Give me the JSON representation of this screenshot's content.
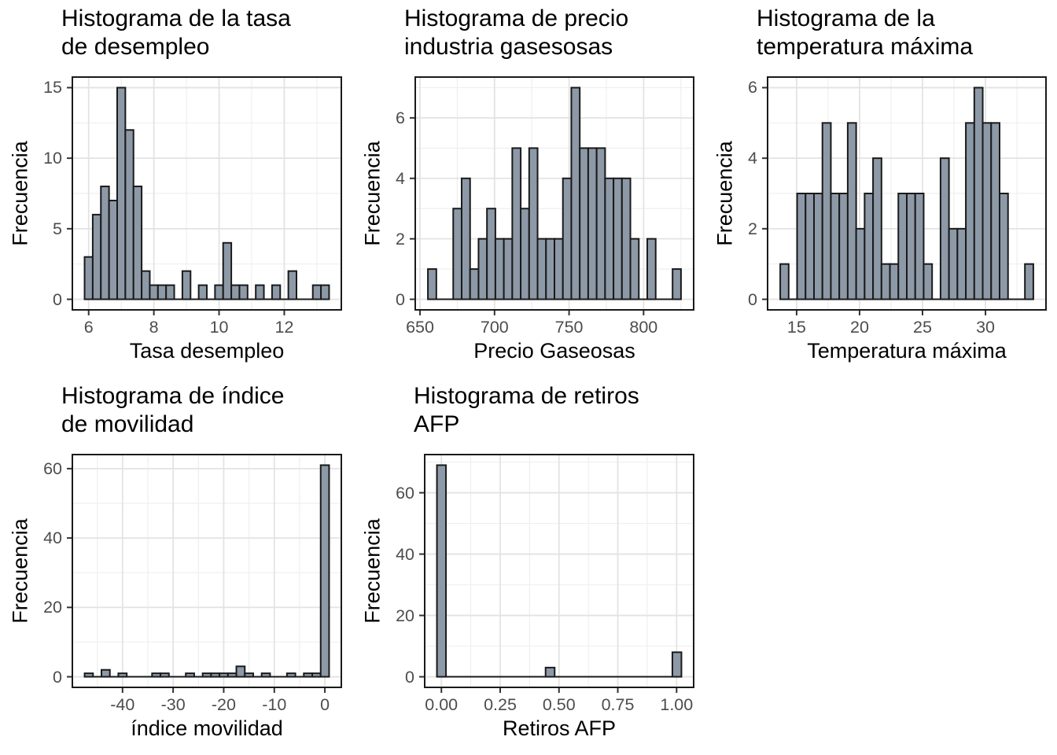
{
  "figure": {
    "background": "#FFFFFF",
    "rows": 2,
    "cols": 3,
    "description_note": "Grid of five frequency histograms"
  },
  "styles": {
    "bar_fill": "#8D99A7",
    "bar_stroke": "#1A1A1A",
    "panel_border": "#1A1A1A",
    "grid_major_color": "#E3E3E3",
    "grid_minor_color": "#EFEFEF",
    "axis_tick_color": "#333333",
    "tick_label_color": "#4D4D4D",
    "text_color": "#000000"
  },
  "chart_data": [
    {
      "id": "tasa-desempleo",
      "type": "bar",
      "variant": "histogram",
      "title": "Histograma de la tasa\n de desempleo",
      "xlabel": "Tasa desempleo",
      "ylabel": "Frecuencia",
      "grid": true,
      "legend": false,
      "bin_start": 5.875,
      "bin_width": 0.25,
      "counts": [
        3,
        6,
        8,
        7,
        15,
        12,
        8,
        2,
        1,
        1,
        1,
        0,
        2,
        0,
        1,
        0,
        1,
        4,
        1,
        1,
        0,
        1,
        0,
        1,
        0,
        2,
        0,
        0,
        1,
        1
      ],
      "x_ticks": {
        "values": [
          6,
          8,
          10,
          12
        ],
        "labels": [
          "6",
          "8",
          "10",
          "12"
        ],
        "minor": [
          7,
          9,
          11,
          13
        ]
      },
      "y_ticks": {
        "values": [
          0,
          5,
          10,
          15
        ],
        "labels": [
          "0",
          "5",
          "10",
          "15"
        ],
        "minor": [
          2.5,
          7.5,
          12.5
        ]
      },
      "xlim": [
        5.5,
        13.75
      ],
      "ylim": [
        -0.75,
        15.75
      ]
    },
    {
      "id": "precio-gaseosas",
      "type": "bar",
      "variant": "histogram",
      "title": "Histograma de precio\n industria gasesosas",
      "xlabel": "Precio Gaseosas",
      "ylabel": "Frecuencia",
      "grid": true,
      "legend": false,
      "bin_start": 655.3,
      "bin_width": 5.66,
      "counts": [
        1,
        0,
        0,
        3,
        4,
        1,
        2,
        3,
        2,
        2,
        5,
        3,
        5,
        2,
        2,
        2,
        4,
        7,
        5,
        5,
        5,
        4,
        4,
        4,
        2,
        0,
        2,
        0,
        0,
        1
      ],
      "x_ticks": {
        "values": [
          650,
          700,
          750,
          800
        ],
        "labels": [
          "650",
          "700",
          "750",
          "800"
        ],
        "minor": [
          675,
          725,
          775,
          825
        ]
      },
      "y_ticks": {
        "values": [
          0,
          2,
          4,
          6
        ],
        "labels": [
          "0",
          "2",
          "4",
          "6"
        ],
        "minor": [
          1,
          3,
          5,
          7
        ]
      },
      "xlim": [
        646.81,
        833.59
      ],
      "ylim": [
        -0.35,
        7.35
      ]
    },
    {
      "id": "temperatura-maxima",
      "type": "bar",
      "variant": "histogram",
      "title": "Histograma de la\n temperatura máxima",
      "xlabel": "Temperatura máxima",
      "ylabel": "Frecuencia",
      "grid": true,
      "legend": false,
      "bin_start": 13.7,
      "bin_width": 0.67,
      "counts": [
        1,
        0,
        3,
        3,
        3,
        5,
        3,
        3,
        5,
        2,
        3,
        4,
        1,
        1,
        3,
        3,
        3,
        1,
        0,
        4,
        2,
        2,
        5,
        6,
        5,
        5,
        3,
        0,
        0,
        1
      ],
      "x_ticks": {
        "values": [
          15,
          20,
          25,
          30
        ],
        "labels": [
          "15",
          "20",
          "25",
          "30"
        ],
        "minor": [
          17.5,
          22.5,
          27.5,
          32.5
        ]
      },
      "y_ticks": {
        "values": [
          0,
          2,
          4,
          6
        ],
        "labels": [
          "0",
          "2",
          "4",
          "6"
        ],
        "minor": [
          1,
          3,
          5
        ]
      },
      "xlim": [
        12.695,
        34.805
      ],
      "ylim": [
        -0.3,
        6.3
      ]
    },
    {
      "id": "indice-movilidad",
      "type": "bar",
      "variant": "histogram",
      "title": "Histograma de índice\n de movilidad",
      "xlabel": "índice movilidad",
      "ylabel": "Frecuencia",
      "grid": true,
      "legend": false,
      "bin_start": -47.5,
      "bin_width": 1.6667,
      "counts": [
        1,
        0,
        2,
        0,
        1,
        0,
        0,
        0,
        1,
        1,
        0,
        0,
        1,
        0,
        1,
        1,
        1,
        1,
        3,
        1,
        0,
        1,
        0,
        0,
        1,
        0,
        1,
        1,
        61
      ],
      "x_ticks": {
        "values": [
          -40,
          -30,
          -20,
          -10,
          0
        ],
        "labels": [
          "-40",
          "-30",
          "-20",
          "-10",
          "0"
        ],
        "minor": [
          -45,
          -35,
          -25,
          -15,
          -5
        ]
      },
      "y_ticks": {
        "values": [
          0,
          20,
          40,
          60
        ],
        "labels": [
          "0",
          "20",
          "40",
          "60"
        ],
        "minor": [
          10,
          30,
          50
        ]
      },
      "xlim": [
        -49.92,
        3.25
      ],
      "ylim": [
        -3.05,
        64.05
      ]
    },
    {
      "id": "retiros-afp",
      "type": "bar",
      "variant": "histogram",
      "title": "Histograma de retiros\n AFP",
      "xlabel": "Retiros AFP",
      "ylabel": "Frecuencia",
      "grid": true,
      "legend": false,
      "bin_start": -0.019,
      "bin_width": 0.0385,
      "counts": [
        69,
        0,
        0,
        0,
        0,
        0,
        0,
        0,
        0,
        0,
        0,
        0,
        3,
        0,
        0,
        0,
        0,
        0,
        0,
        0,
        0,
        0,
        0,
        0,
        0,
        0,
        8
      ],
      "x_ticks": {
        "values": [
          0.0,
          0.25,
          0.5,
          0.75,
          1.0
        ],
        "labels": [
          "0.00",
          "0.25",
          "0.50",
          "0.75",
          "1.00"
        ],
        "minor": [
          0.125,
          0.375,
          0.625,
          0.875
        ]
      },
      "y_ticks": {
        "values": [
          0,
          20,
          40,
          60
        ],
        "labels": [
          "0",
          "20",
          "40",
          "60"
        ],
        "minor": [
          10,
          30,
          50,
          70
        ]
      },
      "xlim": [
        -0.071,
        1.0725
      ],
      "ylim": [
        -3.45,
        72.45
      ]
    }
  ]
}
